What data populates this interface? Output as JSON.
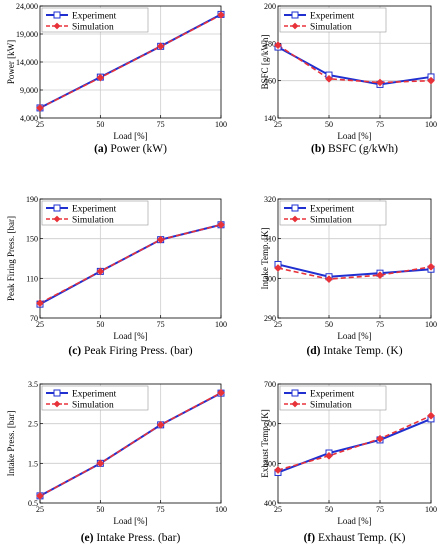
{
  "colors": {
    "experiment": "#1f2fd0",
    "simulation": "#e8323a",
    "grid": "#cccccc",
    "axis": "#000000"
  },
  "chart_data": [
    {
      "type": "line",
      "caption_prefix": "(a)",
      "caption_text": " Power (kW)",
      "xlabel": "Load [%]",
      "ylabel": "Power [kW]",
      "x": [
        25,
        50,
        75,
        100
      ],
      "xticks": [
        "25",
        "50",
        "75",
        "100"
      ],
      "ylim": [
        4000,
        24000
      ],
      "yticks": [
        4000,
        9000,
        14000,
        19000,
        24000
      ],
      "yticklabels": [
        "4,000",
        "9,000",
        "14,000",
        "19,000",
        "24,000"
      ],
      "grid": true,
      "legend_position": "top-left",
      "series": [
        {
          "name": "Experiment",
          "values": [
            5800,
            11300,
            16800,
            22500
          ]
        },
        {
          "name": "Simulation",
          "values": [
            5800,
            11200,
            16800,
            22400
          ]
        }
      ]
    },
    {
      "type": "line",
      "caption_prefix": "(b)",
      "caption_text": " BSFC (g/kWh)",
      "xlabel": "Load [%]",
      "ylabel": "BSFC [g/kWh]",
      "x": [
        25,
        50,
        75,
        100
      ],
      "xticks": [
        "25",
        "50",
        "75",
        "100"
      ],
      "ylim": [
        140,
        200
      ],
      "yticks": [
        140,
        160,
        180,
        200
      ],
      "yticklabels": [
        "140",
        "160",
        "180",
        "200"
      ],
      "grid": true,
      "legend_position": "top-left",
      "series": [
        {
          "name": "Experiment",
          "values": [
            178,
            163,
            158,
            162
          ]
        },
        {
          "name": "Simulation",
          "values": [
            179,
            161,
            159,
            160
          ]
        }
      ]
    },
    {
      "type": "line",
      "caption_prefix": "(c)",
      "caption_text": " Peak Firing Press. (bar)",
      "xlabel": "Load [%]",
      "ylabel": "Peak Firing Press. [bar]",
      "x": [
        25,
        50,
        75,
        100
      ],
      "xticks": [
        "25",
        "50",
        "75",
        "100"
      ],
      "ylim": [
        70,
        190
      ],
      "yticks": [
        70,
        110,
        150,
        190
      ],
      "yticklabels": [
        "70",
        "110",
        "150",
        "190"
      ],
      "grid": true,
      "legend_position": "top-left",
      "series": [
        {
          "name": "Experiment",
          "values": [
            84,
            117,
            149,
            164
          ]
        },
        {
          "name": "Simulation",
          "values": [
            85,
            117,
            149,
            164
          ]
        }
      ]
    },
    {
      "type": "line",
      "caption_prefix": "(d)",
      "caption_text": " Intake Temp. (K)",
      "xlabel": "Load [%]",
      "ylabel": "Intake Temp. [K]",
      "x": [
        25,
        50,
        75,
        100
      ],
      "xticks": [
        "25",
        "50",
        "75",
        "100"
      ],
      "ylim": [
        290,
        320
      ],
      "yticks": [
        290,
        300,
        310,
        320
      ],
      "yticklabels": [
        "290",
        "300",
        "310",
        "320"
      ],
      "grid": true,
      "legend_position": "top-left",
      "series": [
        {
          "name": "Experiment",
          "values": [
            303.5,
            300.4,
            301.3,
            302.3
          ]
        },
        {
          "name": "Simulation",
          "values": [
            302.6,
            299.8,
            300.8,
            302.9
          ]
        }
      ]
    },
    {
      "type": "line",
      "caption_prefix": "(e)",
      "caption_text": " Intake Press. (bar)",
      "xlabel": "Load [%]",
      "ylabel": "Intake Press. [bar]",
      "x": [
        25,
        50,
        75,
        100
      ],
      "xticks": [
        "25",
        "50",
        "75",
        "100"
      ],
      "ylim": [
        0.5,
        3.5
      ],
      "yticks": [
        0.5,
        1.5,
        2.5,
        3.5
      ],
      "yticklabels": [
        "0.5",
        "1.5",
        "2.5",
        "3.5"
      ],
      "grid": true,
      "legend_position": "top-left",
      "series": [
        {
          "name": "Experiment",
          "values": [
            0.68,
            1.5,
            2.47,
            3.27
          ]
        },
        {
          "name": "Simulation",
          "values": [
            0.68,
            1.5,
            2.47,
            3.28
          ]
        }
      ]
    },
    {
      "type": "line",
      "caption_prefix": "(f)",
      "caption_text": " Exhaust Temp. (K)",
      "xlabel": "Load [%]",
      "ylabel": "Exhaust Temp. [K]",
      "x": [
        25,
        50,
        75,
        100
      ],
      "xticks": [
        "25",
        "50",
        "75",
        "100"
      ],
      "ylim": [
        400,
        700
      ],
      "yticks": [
        400,
        500,
        600,
        700
      ],
      "yticklabels": [
        "400",
        "500",
        "600",
        "700"
      ],
      "grid": true,
      "legend_position": "top-left",
      "series": [
        {
          "name": "Experiment",
          "values": [
            477,
            526,
            559,
            612
          ]
        },
        {
          "name": "Simulation",
          "values": [
            483,
            519,
            562,
            620
          ]
        }
      ]
    }
  ]
}
